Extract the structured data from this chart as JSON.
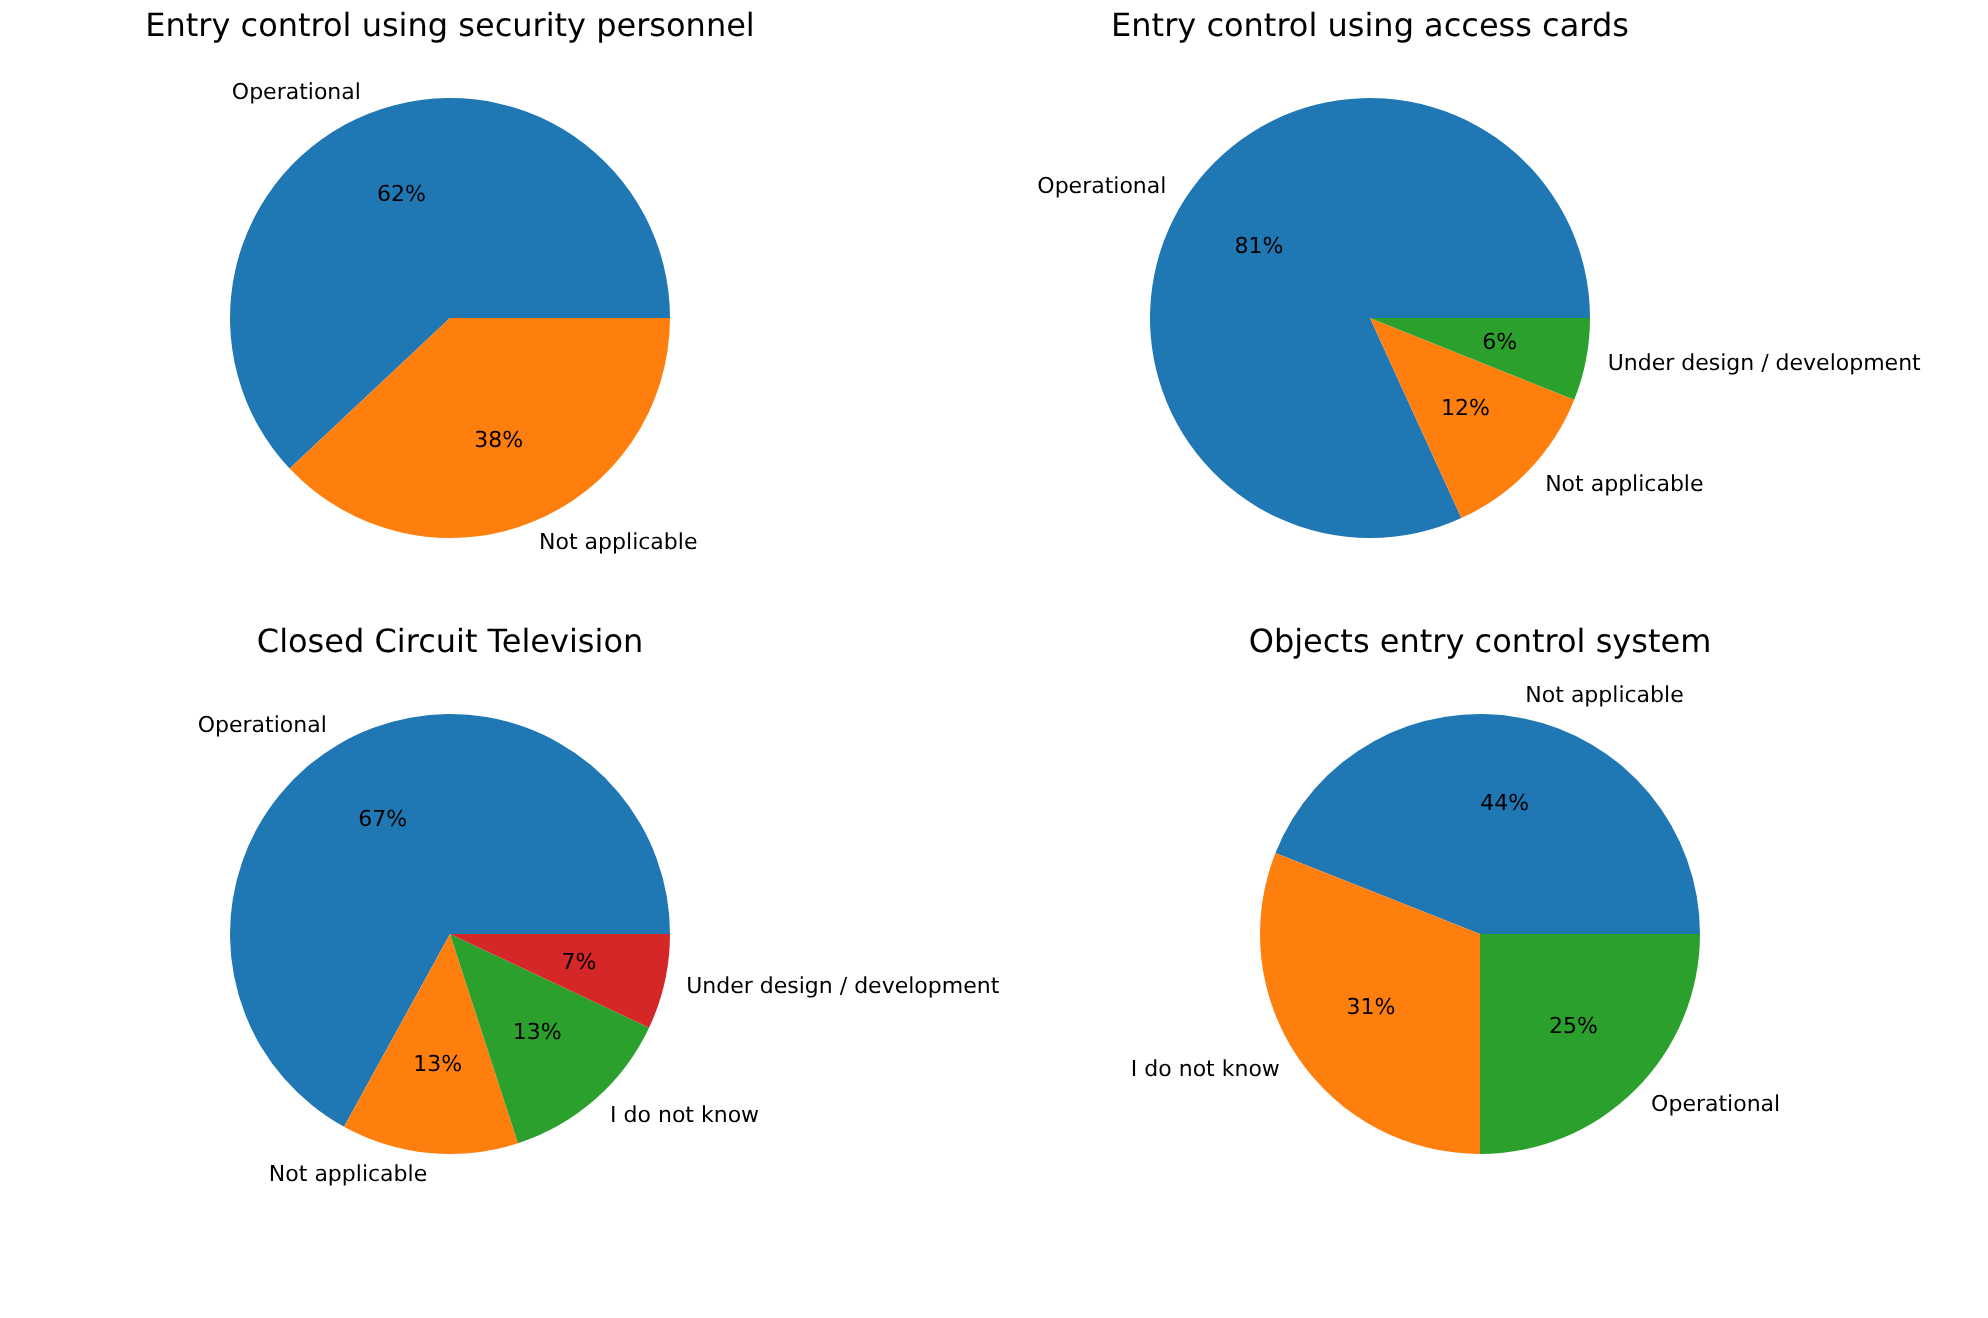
{
  "chart_data": [
    {
      "type": "pie",
      "title": "Entry control using security personnel",
      "categories": [
        "Operational",
        "Not applicable"
      ],
      "values": [
        62,
        38
      ],
      "colors": [
        "#1f77b4",
        "#ff7f0e"
      ],
      "value_labels": [
        "62%",
        "38%"
      ]
    },
    {
      "type": "pie",
      "title": "Entry control using access cards",
      "categories": [
        "Operational",
        "Not applicable",
        "Under design / development"
      ],
      "values": [
        81,
        12,
        6
      ],
      "colors": [
        "#1f77b4",
        "#ff7f0e",
        "#2ca02c"
      ],
      "value_labels": [
        "81%",
        "12%",
        "6%"
      ]
    },
    {
      "type": "pie",
      "title": "Closed Circuit Television",
      "categories": [
        "Operational",
        "Not applicable",
        "I do not know",
        "Under design / development"
      ],
      "values": [
        67,
        13,
        13,
        7
      ],
      "colors": [
        "#1f77b4",
        "#ff7f0e",
        "#2ca02c",
        "#d62728"
      ],
      "value_labels": [
        "67%",
        "13%",
        "13%",
        "7%"
      ]
    },
    {
      "type": "pie",
      "title": "Objects entry control system",
      "categories": [
        "Not applicable",
        "I do not know",
        "Operational"
      ],
      "values": [
        44,
        31,
        25
      ],
      "colors": [
        "#1f77b4",
        "#ff7f0e",
        "#2ca02c"
      ],
      "value_labels": [
        "44%",
        "31%",
        "25%"
      ]
    }
  ]
}
